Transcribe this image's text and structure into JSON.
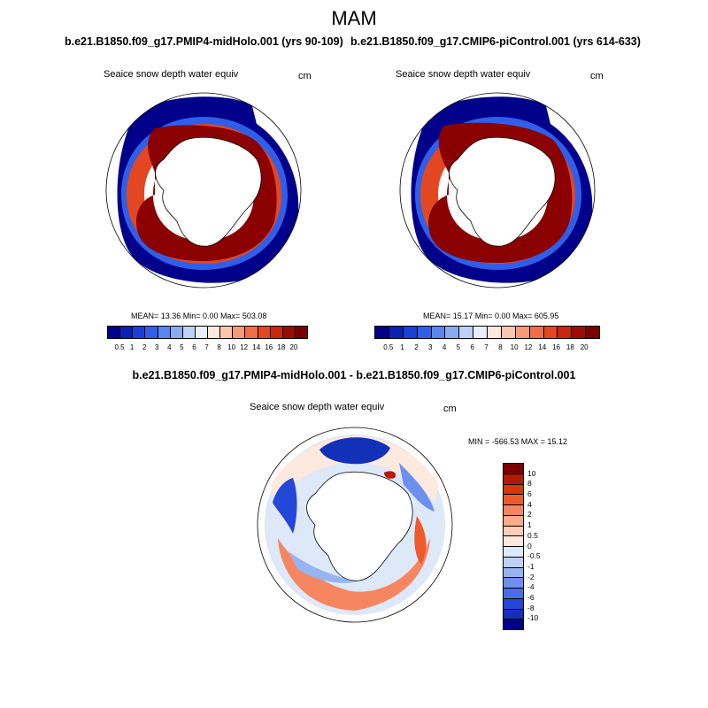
{
  "main_title": "MAM",
  "panels": [
    {
      "case": "b.e21.B1850.f09_g17.PMIP4-midHolo.001 (yrs 90-109)",
      "title": "Seaice snow depth water equiv",
      "units": "cm",
      "stats": "MEAN=  13.36  Min=   0.00  Max= 503.08"
    },
    {
      "case": "b.e21.B1850.f09_g17.CMIP6-piControl.001 (yrs 614-633)",
      "title": "Seaice snow depth water equiv",
      "units": "cm",
      "stats": "MEAN=  15.17  Min=   0.00  Max= 605.95"
    }
  ],
  "diff": {
    "case": "b.e21.B1850.f09_g17.PMIP4-midHolo.001 - b.e21.B1850.f09_g17.CMIP6-piControl.001",
    "title": "Seaice snow depth water equiv",
    "units": "cm",
    "stats": "MIN = -566.53 MAX =  15.12"
  },
  "colorbar": {
    "labels": [
      "0.5",
      "1",
      "2",
      "3",
      "4",
      "5",
      "6",
      "7",
      "8",
      "10",
      "12",
      "14",
      "16",
      "18",
      "20"
    ],
    "colors": [
      "#00008b",
      "#0a1fb4",
      "#1a3fd6",
      "#2f5fe8",
      "#5a85ee",
      "#8aaaf2",
      "#bcd0f8",
      "#e8eefc",
      "#fde8dc",
      "#fbc6ad",
      "#f79a77",
      "#f06e45",
      "#e34722",
      "#c8260e",
      "#9b0c02",
      "#7a0000"
    ]
  },
  "diff_colorbar": {
    "labels": [
      "10",
      "8",
      "6",
      "4",
      "2",
      "1",
      "0.5",
      "0",
      "-0.5",
      "-1",
      "-2",
      "-4",
      "-6",
      "-8",
      "-10"
    ],
    "colors": [
      "#7a0000",
      "#b31a04",
      "#d7360f",
      "#ef5a2d",
      "#f58660",
      "#f9ab8e",
      "#fccdb9",
      "#fde9dd",
      "#dde8f8",
      "#bdd1f5",
      "#98b4f0",
      "#6d8ff0",
      "#4a6de6",
      "#2447d8",
      "#1230b8",
      "#00008b"
    ]
  },
  "map_legend": {
    "ice_high": "#8b0000",
    "ice_mid": "#e34722",
    "ice_edge": "#2f5fe8",
    "ice_low": "#00008b",
    "land": "#ffffff"
  }
}
